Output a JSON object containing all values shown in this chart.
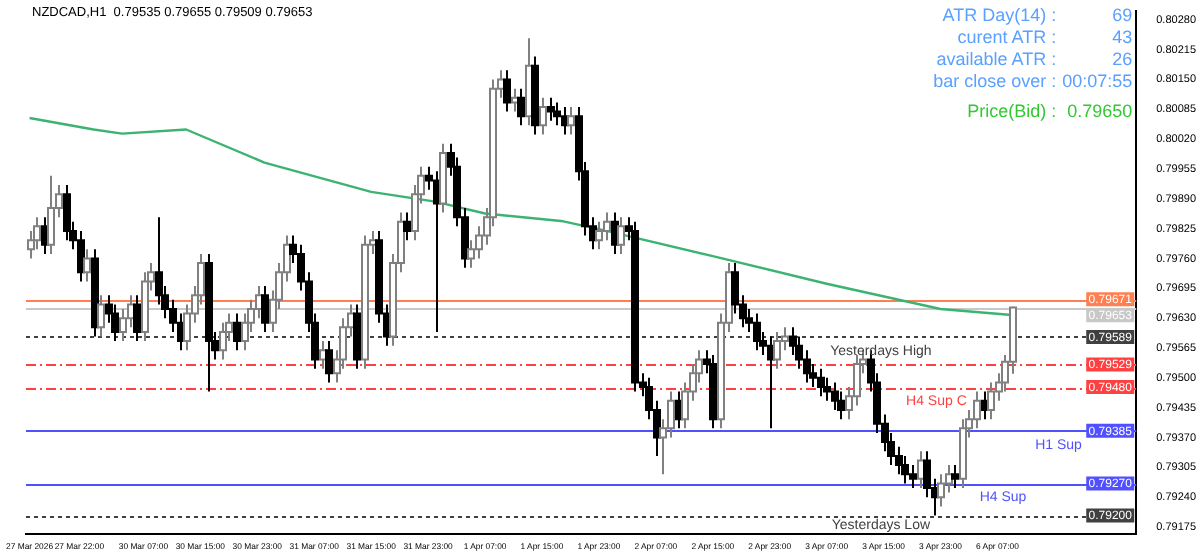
{
  "chart_data": {
    "type": "candlestick",
    "title": "NZDCAD,H1  0.79535 0.79655 0.79509 0.79653",
    "annotations": [
      "ATR Day(14) :",
      "69",
      "curent ATR :",
      "43",
      "available ATR :",
      "26",
      "bar close over :",
      "00:07:55",
      "Price(Bid) :",
      "0.79650",
      {
        "text": "Yesterdays High",
        "y": 0.79589
      },
      {
        "text": "H4 Sup C",
        "y": 0.7948
      },
      {
        "text": "H1 Sup",
        "y": 0.79385
      },
      {
        "text": "H4 Sup",
        "y": 0.7927
      },
      {
        "text": "Yesterdays Low",
        "y": 0.792
      }
    ],
    "categories": [
      "27 Mar 2026",
      null,
      null,
      null,
      null,
      null,
      null,
      "27 Mar 22:00",
      null,
      null,
      null,
      null,
      null,
      null,
      null,
      null,
      "30 Mar 07:00",
      null,
      null,
      null,
      null,
      null,
      null,
      null,
      "30 Mar 15:00",
      null,
      null,
      null,
      null,
      null,
      null,
      null,
      "30 Mar 23:00",
      null,
      null,
      null,
      null,
      null,
      null,
      null,
      "31 Mar 07:00",
      null,
      null,
      null,
      null,
      null,
      null,
      null,
      "31 Mar 15:00",
      null,
      null,
      null,
      null,
      null,
      null,
      null,
      "31 Mar 23:00",
      null,
      null,
      null,
      null,
      null,
      null,
      null,
      "1 Apr 07:00",
      null,
      null,
      null,
      null,
      null,
      null,
      null,
      "1 Apr 15:00",
      null,
      null,
      null,
      null,
      null,
      null,
      null,
      "1 Apr 23:00",
      null,
      null,
      null,
      null,
      null,
      null,
      null,
      "2 Apr 07:00",
      null,
      null,
      null,
      null,
      null,
      null,
      null,
      "2 Apr 15:00",
      null,
      null,
      null,
      null,
      null,
      null,
      null,
      "2 Apr 23:00",
      null,
      null,
      null,
      null,
      null,
      null,
      null,
      "3 Apr 07:00",
      null,
      null,
      null,
      null,
      null,
      null,
      null,
      "3 Apr 15:00",
      null,
      null,
      null,
      null,
      null,
      null,
      null,
      "3 Apr 23:00",
      null,
      null,
      null,
      null,
      null,
      null,
      null,
      "6 Apr 07:00",
      null,
      null,
      null,
      null,
      null,
      null,
      null,
      null,
      null,
      null,
      null,
      null,
      null,
      null,
      null,
      null,
      null,
      null,
      null
    ],
    "ohlc": [
      [
        0.7978,
        0.7982,
        0.7976,
        0.798
      ],
      [
        0.798,
        0.7985,
        0.7978,
        0.7983
      ],
      [
        0.7983,
        0.7985,
        0.7977,
        0.7979
      ],
      [
        0.7979,
        0.7994,
        0.7977,
        0.7987
      ],
      [
        0.7987,
        0.7992,
        0.7985,
        0.799
      ],
      [
        0.799,
        0.7992,
        0.798,
        0.7982
      ],
      [
        0.7982,
        0.7984,
        0.7978,
        0.798
      ],
      [
        0.798,
        0.7982,
        0.7971,
        0.7973
      ],
      [
        0.7973,
        0.7978,
        0.7971,
        0.7976
      ],
      [
        0.7976,
        0.7978,
        0.7959,
        0.7961
      ],
      [
        0.7961,
        0.7968,
        0.7959,
        0.7966
      ],
      [
        0.7966,
        0.7968,
        0.7962,
        0.7964
      ],
      [
        0.7964,
        0.7966,
        0.7958,
        0.796
      ],
      [
        0.796,
        0.7965,
        0.7958,
        0.7963
      ],
      [
        0.7963,
        0.7968,
        0.7961,
        0.7966
      ],
      [
        0.7966,
        0.7968,
        0.7958,
        0.796
      ],
      [
        0.796,
        0.7973,
        0.7958,
        0.7971
      ],
      [
        0.7971,
        0.7975,
        0.7969,
        0.7973
      ],
      [
        0.7973,
        0.7985,
        0.7966,
        0.7968
      ],
      [
        0.7968,
        0.797,
        0.7963,
        0.7965
      ],
      [
        0.7965,
        0.7967,
        0.796,
        0.7962
      ],
      [
        0.7962,
        0.7964,
        0.7956,
        0.7958
      ],
      [
        0.7958,
        0.7966,
        0.7956,
        0.7964
      ],
      [
        0.7964,
        0.797,
        0.7962,
        0.7968
      ],
      [
        0.7968,
        0.7977,
        0.7966,
        0.7975
      ],
      [
        0.7975,
        0.7977,
        0.7947,
        0.7958
      ],
      [
        0.7958,
        0.796,
        0.7954,
        0.7956
      ],
      [
        0.7956,
        0.7962,
        0.7954,
        0.796
      ],
      [
        0.796,
        0.7964,
        0.7958,
        0.7962
      ],
      [
        0.7962,
        0.7964,
        0.7956,
        0.7958
      ],
      [
        0.7958,
        0.7964,
        0.7956,
        0.7962
      ],
      [
        0.7962,
        0.7967,
        0.796,
        0.7965
      ],
      [
        0.7965,
        0.797,
        0.7963,
        0.7968
      ],
      [
        0.7968,
        0.797,
        0.796,
        0.7962
      ],
      [
        0.7962,
        0.7969,
        0.796,
        0.7967
      ],
      [
        0.7967,
        0.7975,
        0.7965,
        0.7973
      ],
      [
        0.7973,
        0.7981,
        0.7971,
        0.7979
      ],
      [
        0.7979,
        0.7981,
        0.7975,
        0.7977
      ],
      [
        0.7977,
        0.7979,
        0.7969,
        0.7971
      ],
      [
        0.7971,
        0.7973,
        0.796,
        0.7962
      ],
      [
        0.7962,
        0.7964,
        0.7952,
        0.7954
      ],
      [
        0.7954,
        0.7958,
        0.7952,
        0.7956
      ],
      [
        0.7956,
        0.7958,
        0.7949,
        0.7951
      ],
      [
        0.7951,
        0.7956,
        0.7949,
        0.7954
      ],
      [
        0.7954,
        0.7963,
        0.7952,
        0.7961
      ],
      [
        0.7961,
        0.7966,
        0.7959,
        0.7964
      ],
      [
        0.7964,
        0.7966,
        0.7952,
        0.7954
      ],
      [
        0.7954,
        0.7981,
        0.7952,
        0.7979
      ],
      [
        0.7979,
        0.7982,
        0.7977,
        0.798
      ],
      [
        0.798,
        0.7982,
        0.7962,
        0.7964
      ],
      [
        0.7964,
        0.7966,
        0.7957,
        0.7959
      ],
      [
        0.7959,
        0.7977,
        0.7957,
        0.7975
      ],
      [
        0.7975,
        0.7986,
        0.7973,
        0.7984
      ],
      [
        0.7984,
        0.7986,
        0.798,
        0.7982
      ],
      [
        0.7982,
        0.7992,
        0.798,
        0.799
      ],
      [
        0.799,
        0.7996,
        0.7988,
        0.7994
      ],
      [
        0.7994,
        0.7996,
        0.7991,
        0.7993
      ],
      [
        0.7993,
        0.7995,
        0.796,
        0.7988
      ],
      [
        0.7988,
        0.8001,
        0.7986,
        0.7999
      ],
      [
        0.7999,
        0.8001,
        0.7994,
        0.7996
      ],
      [
        0.7996,
        0.7998,
        0.7983,
        0.7985
      ],
      [
        0.7985,
        0.7987,
        0.7974,
        0.7976
      ],
      [
        0.7976,
        0.798,
        0.7974,
        0.7978
      ],
      [
        0.7978,
        0.7983,
        0.7976,
        0.7981
      ],
      [
        0.7981,
        0.7987,
        0.7979,
        0.7985
      ],
      [
        0.7985,
        0.8015,
        0.7983,
        0.8013
      ],
      [
        0.8013,
        0.8017,
        0.8011,
        0.8015
      ],
      [
        0.8015,
        0.8017,
        0.8008,
        0.801
      ],
      [
        0.801,
        0.8013,
        0.8008,
        0.8011
      ],
      [
        0.8011,
        0.8013,
        0.8005,
        0.8007
      ],
      [
        0.8007,
        0.8024,
        0.8005,
        0.8018
      ],
      [
        0.8018,
        0.802,
        0.8003,
        0.8005
      ],
      [
        0.8005,
        0.8011,
        0.8003,
        0.8009
      ],
      [
        0.8009,
        0.8011,
        0.8006,
        0.8008
      ],
      [
        0.8008,
        0.801,
        0.8005,
        0.8007
      ],
      [
        0.8007,
        0.8009,
        0.8003,
        0.8005
      ],
      [
        0.8005,
        0.8009,
        0.8003,
        0.8007
      ],
      [
        0.8007,
        0.8009,
        0.7993,
        0.7995
      ],
      [
        0.7995,
        0.7997,
        0.7981,
        0.7983
      ],
      [
        0.7983,
        0.7985,
        0.7978,
        0.798
      ],
      [
        0.798,
        0.7984,
        0.7978,
        0.7982
      ],
      [
        0.7982,
        0.7986,
        0.798,
        0.7984
      ],
      [
        0.7984,
        0.7986,
        0.7977,
        0.7979
      ],
      [
        0.7979,
        0.7985,
        0.7977,
        0.7983
      ],
      [
        0.7983,
        0.7985,
        0.798,
        0.7982
      ],
      [
        0.7982,
        0.7984,
        0.7947,
        0.7949
      ],
      [
        0.7949,
        0.7951,
        0.7946,
        0.7948
      ],
      [
        0.7948,
        0.795,
        0.7941,
        0.7943
      ],
      [
        0.7943,
        0.7945,
        0.7933,
        0.7937
      ],
      [
        0.7937,
        0.7941,
        0.7929,
        0.7939
      ],
      [
        0.7939,
        0.7947,
        0.7937,
        0.7945
      ],
      [
        0.7945,
        0.7947,
        0.7939,
        0.7941
      ],
      [
        0.7941,
        0.7949,
        0.7939,
        0.7947
      ],
      [
        0.7947,
        0.7953,
        0.7945,
        0.7951
      ],
      [
        0.7951,
        0.7956,
        0.7949,
        0.7954
      ],
      [
        0.7954,
        0.7956,
        0.7951,
        0.7953
      ],
      [
        0.7953,
        0.7955,
        0.7939,
        0.7941
      ],
      [
        0.7941,
        0.7964,
        0.7939,
        0.7962
      ],
      [
        0.7962,
        0.7975,
        0.796,
        0.7973
      ],
      [
        0.7973,
        0.7975,
        0.7964,
        0.7966
      ],
      [
        0.7966,
        0.7968,
        0.7961,
        0.7963
      ],
      [
        0.7963,
        0.7965,
        0.796,
        0.7962
      ],
      [
        0.7962,
        0.7964,
        0.7956,
        0.7958
      ],
      [
        0.7958,
        0.796,
        0.7955,
        0.7957
      ],
      [
        0.7957,
        0.7959,
        0.7939,
        0.7954
      ],
      [
        0.7954,
        0.796,
        0.7952,
        0.7958
      ],
      [
        0.7958,
        0.7961,
        0.7956,
        0.7959
      ],
      [
        0.7959,
        0.7961,
        0.7955,
        0.7957
      ],
      [
        0.7957,
        0.7959,
        0.7952,
        0.7954
      ],
      [
        0.7954,
        0.7956,
        0.7949,
        0.7951
      ],
      [
        0.7951,
        0.7953,
        0.7948,
        0.795
      ],
      [
        0.795,
        0.7952,
        0.7946,
        0.7948
      ],
      [
        0.7948,
        0.795,
        0.7945,
        0.7947
      ],
      [
        0.7947,
        0.7949,
        0.7943,
        0.7945
      ],
      [
        0.7945,
        0.7947,
        0.7941,
        0.7943
      ],
      [
        0.7943,
        0.7948,
        0.7941,
        0.7946
      ],
      [
        0.7946,
        0.7955,
        0.7944,
        0.7953
      ],
      [
        0.7953,
        0.7956,
        0.7951,
        0.7954
      ],
      [
        0.7954,
        0.7956,
        0.7947,
        0.7949
      ],
      [
        0.7949,
        0.7951,
        0.7938,
        0.794
      ],
      [
        0.794,
        0.7942,
        0.7934,
        0.7936
      ],
      [
        0.7936,
        0.7938,
        0.7931,
        0.7933
      ],
      [
        0.7933,
        0.7935,
        0.7929,
        0.7931
      ],
      [
        0.7931,
        0.7933,
        0.7927,
        0.7929
      ],
      [
        0.7929,
        0.7931,
        0.7926,
        0.7928
      ],
      [
        0.7928,
        0.7934,
        0.7926,
        0.7932
      ],
      [
        0.7932,
        0.7934,
        0.7924,
        0.7926
      ],
      [
        0.7926,
        0.7928,
        0.792,
        0.7924
      ],
      [
        0.7924,
        0.7929,
        0.7922,
        0.7927
      ],
      [
        0.7927,
        0.7931,
        0.7925,
        0.7929
      ],
      [
        0.7929,
        0.7931,
        0.7926,
        0.7928
      ],
      [
        0.7928,
        0.7941,
        0.7926,
        0.7939
      ],
      [
        0.7939,
        0.7943,
        0.7937,
        0.7941
      ],
      [
        0.7941,
        0.7947,
        0.7939,
        0.7945
      ],
      [
        0.7945,
        0.7947,
        0.7941,
        0.7943
      ],
      [
        0.7943,
        0.7949,
        0.7941,
        0.7947
      ],
      [
        0.7947,
        0.7951,
        0.7945,
        0.7949
      ],
      [
        0.7949,
        0.7955,
        0.7947,
        0.79535
      ],
      [
        0.79535,
        0.79655,
        0.79509,
        0.79653
      ],
      null,
      null,
      null,
      null,
      null,
      null,
      null,
      null,
      null,
      null,
      null,
      null,
      null,
      null,
      null,
      null,
      null
    ],
    "series": [
      {
        "type": "line",
        "color": "#3cb371",
        "values": [
          0.80066,
          null,
          null,
          null,
          null,
          null,
          null,
          null,
          null,
          0.80041,
          null,
          null,
          null,
          0.80032,
          null,
          null,
          null,
          null,
          null,
          null,
          null,
          null,
          0.80041,
          null,
          null,
          null,
          null,
          null,
          null,
          null,
          null,
          null,
          null,
          0.79969,
          null,
          null,
          null,
          null,
          null,
          null,
          null,
          null,
          null,
          null,
          null,
          null,
          null,
          null,
          0.79905,
          null,
          null,
          null,
          null,
          null,
          null,
          null,
          null,
          0.79884,
          null,
          null,
          null,
          null,
          null,
          null,
          0.79858,
          null,
          null,
          null,
          null,
          null,
          null,
          null,
          null,
          null,
          null,
          0.79841,
          null,
          null,
          null,
          null,
          0.79824,
          null,
          null,
          null,
          null,
          null,
          null,
          null,
          null,
          null,
          null,
          null,
          null,
          null,
          null,
          null,
          0.79765,
          null,
          null,
          null,
          null,
          null,
          null,
          null,
          null,
          null,
          null,
          null,
          null,
          null,
          null,
          null,
          0.79705,
          null,
          null,
          null,
          null,
          null,
          null,
          null,
          null,
          null,
          null,
          null,
          null,
          null,
          null,
          null,
          0.7965,
          null,
          null,
          null,
          null,
          null,
          null,
          null,
          null,
          null,
          0.79637,
          null,
          null,
          null,
          null,
          null,
          null,
          null,
          null,
          null,
          null,
          null,
          null,
          null,
          null,
          null,
          null,
          null
        ]
      }
    ],
    "ylim": [
      0.7916,
      0.803
    ],
    "yticks": [
      {
        "value": 0.79175,
        "label": "0.79175"
      },
      {
        "value": 0.7924,
        "label": "0.79240"
      },
      {
        "value": 0.79305,
        "label": "0.79305"
      },
      {
        "value": 0.7937,
        "label": "0.79370"
      },
      {
        "value": 0.79435,
        "label": "0.79435"
      },
      {
        "value": 0.795,
        "label": "0.79500"
      },
      {
        "value": 0.79565,
        "label": "0.79565"
      },
      {
        "value": 0.7963,
        "label": "0.79630"
      },
      {
        "value": 0.79695,
        "label": "0.79695"
      },
      {
        "value": 0.7976,
        "label": "0.79760"
      },
      {
        "value": 0.79825,
        "label": "0.79825"
      },
      {
        "value": 0.7989,
        "label": "0.79890"
      },
      {
        "value": 0.79955,
        "label": "0.79955"
      },
      {
        "value": 0.8002,
        "label": "0.80020"
      },
      {
        "value": 0.80085,
        "label": "0.80085"
      },
      {
        "value": 0.8015,
        "label": "0.80150"
      },
      {
        "value": 0.80215,
        "label": "0.80215"
      },
      {
        "value": 0.8028,
        "label": "0.80280"
      }
    ],
    "ref_lines": [
      {
        "axis": "y",
        "value": 0.79671,
        "label": "0.79671",
        "color": "#ff7f50",
        "line_style": "solid"
      },
      {
        "axis": "y",
        "value": 0.79653,
        "label": "0.79653",
        "color": "#c8c8c8",
        "line_style": "solid"
      },
      {
        "axis": "y",
        "value": 0.79589,
        "label": "0.79589",
        "color": "#404040",
        "line_style": "dotted"
      },
      {
        "axis": "y",
        "value": 0.79529,
        "label": "0.79529",
        "color": "#ff4040",
        "line_style": "dashed"
      },
      {
        "axis": "y",
        "value": 0.7948,
        "label": "0.79480",
        "color": "#ff4040",
        "line_style": "dashed"
      },
      {
        "axis": "y",
        "value": 0.79385,
        "label": "0.79385",
        "color": "#5050ff",
        "line_style": "solid"
      },
      {
        "axis": "y",
        "value": 0.7927,
        "label": "0.79270",
        "color": "#5050ff",
        "line_style": "solid"
      },
      {
        "axis": "y",
        "value": 0.792,
        "label": "0.79200",
        "color": "#404040",
        "line_style": "dotted"
      }
    ],
    "legend": false
  }
}
